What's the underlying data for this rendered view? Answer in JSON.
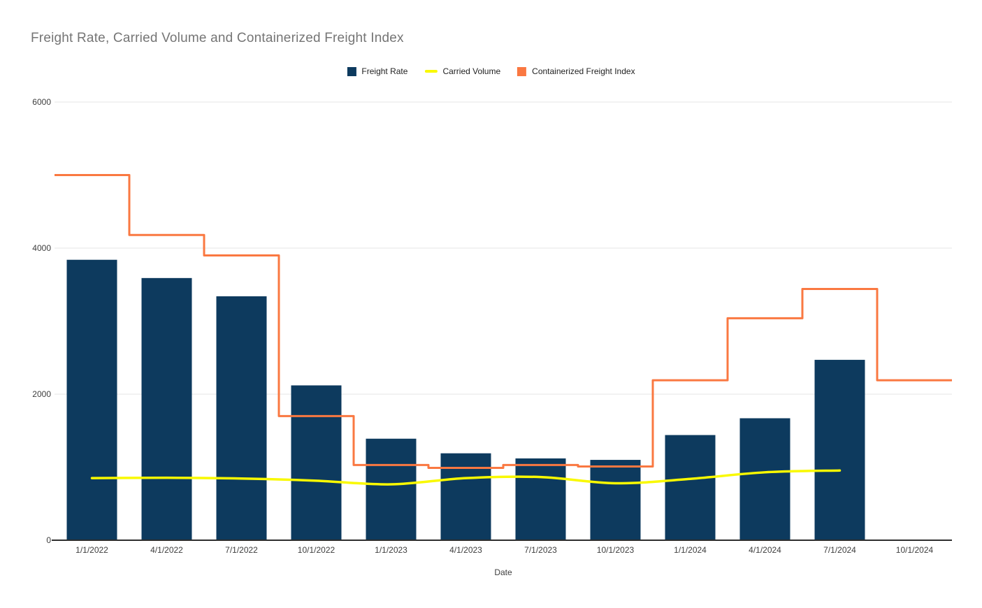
{
  "chart": {
    "title": "Freight Rate, Carried Volume and Containerized Freight Index"
  },
  "legend": {
    "items": [
      {
        "label": "Freight Rate",
        "swatch": "square",
        "color": "#0d3a5e"
      },
      {
        "label": "Carried Volume",
        "swatch": "line",
        "color": "#f9f900"
      },
      {
        "label": "Containerized Freight Index",
        "swatch": "square",
        "color": "#fa7841"
      }
    ]
  },
  "chart_data": {
    "type": "combo",
    "title": "Freight Rate, Carried Volume and Containerized Freight Index",
    "xlabel": "Date",
    "ylabel": "",
    "ylim": [
      0,
      6000
    ],
    "yticks": [
      0,
      2000,
      4000,
      6000
    ],
    "grid": true,
    "legend_position": "top",
    "categories": [
      "1/1/2022",
      "4/1/2022",
      "7/1/2022",
      "10/1/2022",
      "1/1/2023",
      "4/1/2023",
      "7/1/2023",
      "10/1/2023",
      "1/1/2024",
      "4/1/2024",
      "7/1/2024",
      "10/1/2024"
    ],
    "series": [
      {
        "name": "Freight Rate",
        "type": "bar",
        "color": "#0d3a5e",
        "values": [
          3840,
          3590,
          3340,
          2120,
          1390,
          1190,
          1120,
          1100,
          1440,
          1670,
          2470,
          null
        ]
      },
      {
        "name": "Carried Volume",
        "type": "line",
        "color": "#f9f900",
        "values": [
          850,
          855,
          845,
          815,
          765,
          850,
          865,
          780,
          840,
          930,
          955,
          null
        ]
      },
      {
        "name": "Containerized Freight Index",
        "type": "step",
        "color": "#fa7841",
        "values": [
          5000,
          4180,
          3900,
          1700,
          1030,
          990,
          1030,
          1010,
          2190,
          3040,
          3440,
          2190
        ]
      }
    ],
    "styles": {
      "gridline_color": "#e4e4e4",
      "axis_line_color": "#2e2e2e",
      "tick_label_color": "#3d3d3d",
      "title_color": "#757575"
    }
  }
}
